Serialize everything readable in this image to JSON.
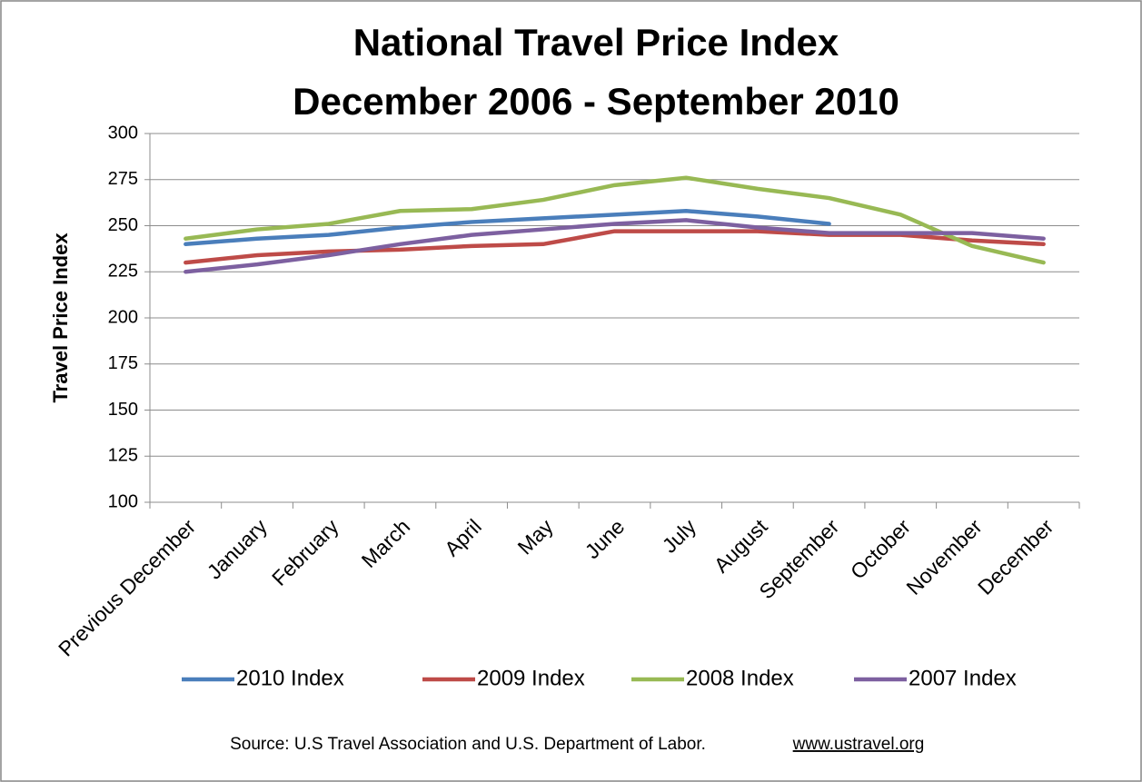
{
  "chart_data": {
    "type": "line",
    "title": [
      "National Travel Price Index",
      "December 2006 - September 2010"
    ],
    "y_label": "Travel Price Index",
    "categories": [
      "Previous December",
      "January",
      "February",
      "March",
      "April",
      "May",
      "June",
      "July",
      "August",
      "September",
      "October",
      "November",
      "December"
    ],
    "series": [
      {
        "name": "2010 Index",
        "color": "#4a7ebb",
        "values": [
          240,
          243,
          245,
          249,
          252,
          254,
          256,
          258,
          255,
          251,
          null,
          null,
          null
        ]
      },
      {
        "name": "2009 Index",
        "color": "#be4b48",
        "values": [
          230,
          234,
          236,
          237,
          239,
          240,
          247,
          247,
          247,
          245,
          245,
          242,
          240
        ]
      },
      {
        "name": "2008 Index",
        "color": "#98b954",
        "values": [
          243,
          248,
          251,
          258,
          259,
          264,
          272,
          276,
          270,
          265,
          256,
          239,
          230
        ]
      },
      {
        "name": "2007 Index",
        "color": "#7d60a0",
        "values": [
          225,
          229,
          234,
          240,
          245,
          248,
          251,
          253,
          249,
          246,
          246,
          246,
          243
        ]
      }
    ],
    "ylim": [
      100,
      300
    ],
    "yticks": [
      100,
      125,
      150,
      175,
      200,
      225,
      250,
      275,
      300
    ],
    "grid": true,
    "legend": "bottom",
    "source": "Source: U.S Travel Association and U.S. Department of Labor.",
    "source_link": "www.ustravel.org"
  }
}
